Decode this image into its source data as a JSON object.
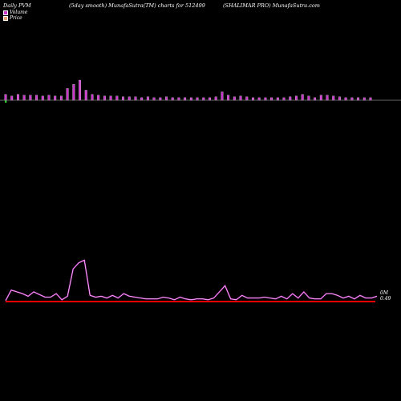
{
  "header": {
    "left": "Daily PVM",
    "middle": "(5day smooth) MunafaSutra(TM) charts for 512499",
    "right": "(SHALIMAR PRO) MunafaSutra.com"
  },
  "legend": {
    "volume_label": "Volume",
    "price_label": "Price",
    "volume_color": "#cc33cc",
    "price_color": "#e8a070"
  },
  "chart_data": {
    "type": "bar",
    "panels": [
      {
        "name": "volume",
        "series": [
          {
            "values": [
              7,
              5,
              7,
              6,
              6,
              6,
              5,
              6,
              5,
              5,
              14,
              19,
              24,
              12,
              7,
              6,
              5,
              5,
              5,
              4,
              4,
              4,
              3,
              4,
              3,
              3,
              4,
              3,
              3,
              3,
              3,
              3,
              3,
              3,
              4,
              10,
              6,
              4,
              5,
              4,
              3,
              3,
              3,
              3,
              3,
              3,
              4,
              5,
              7,
              5,
              3,
              6,
              6,
              5,
              4,
              3,
              3,
              3,
              3,
              3
            ]
          }
        ]
      },
      {
        "name": "price",
        "series": [
          {
            "values": [
              0.5,
              0.62,
              0.6,
              0.58,
              0.55,
              0.6,
              0.57,
              0.54,
              0.54,
              0.58,
              0.51,
              0.55,
              0.86,
              0.93,
              0.96,
              0.56,
              0.54,
              0.55,
              0.53,
              0.56,
              0.53,
              0.58,
              0.55,
              0.54,
              0.53,
              0.52,
              0.52,
              0.52,
              0.54,
              0.53,
              0.51,
              0.54,
              0.52,
              0.51,
              0.52,
              0.52,
              0.51,
              0.53,
              0.6,
              0.67,
              0.52,
              0.51,
              0.56,
              0.53,
              0.53,
              0.53,
              0.54,
              0.53,
              0.52,
              0.55,
              0.52,
              0.58,
              0.53,
              0.6,
              0.53,
              0.52,
              0.52,
              0.58,
              0.58,
              0.56,
              0.53,
              0.55,
              0.52,
              0.56,
              0.53,
              0.53,
              0.55
            ]
          }
        ],
        "baseline_color": "#ff0000",
        "line_color": "#cc33cc"
      }
    ],
    "y_labels": [
      "0M",
      "0.49"
    ]
  }
}
